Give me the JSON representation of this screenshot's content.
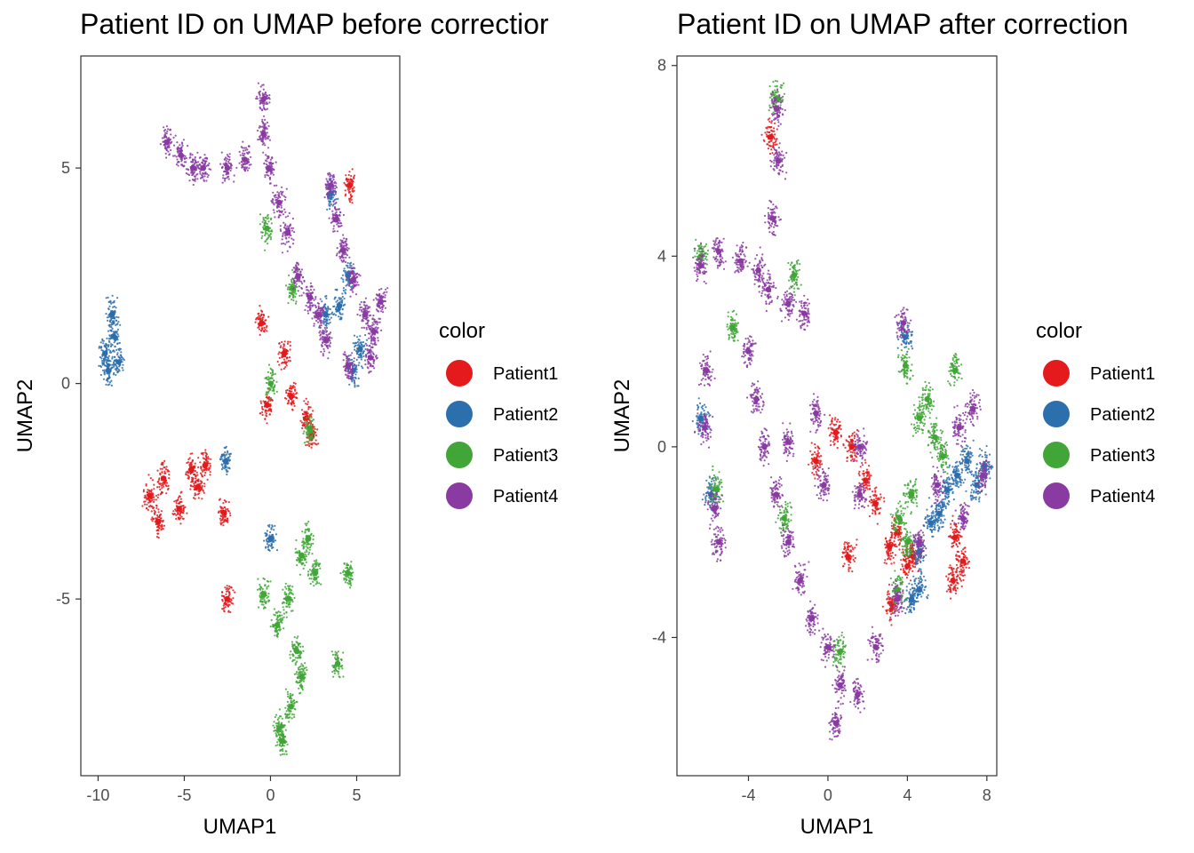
{
  "chart_data": [
    {
      "type": "scatter",
      "title": "Patient ID on UMAP before correctior",
      "xlabel": "UMAP1",
      "ylabel": "UMAP2",
      "xlim": [
        -11,
        7.5
      ],
      "ylim": [
        -9.1,
        7.6
      ],
      "xticks": [
        -10,
        -5,
        0,
        5
      ],
      "xtick_labels": [
        "-10",
        "-5",
        "0",
        "5"
      ],
      "yticks": [
        5,
        0,
        -5
      ],
      "ytick_labels": [
        "5",
        "0",
        "-5"
      ],
      "grid": false,
      "legend": {
        "title": "color",
        "position": "right",
        "entries": [
          "Patient1",
          "Patient2",
          "Patient3",
          "Patient4"
        ]
      },
      "series": [
        {
          "name": "Patient1",
          "color": "#e41a1c",
          "values": [
            [
              -7,
              -2.6
            ],
            [
              -6.2,
              -2.2
            ],
            [
              -5.3,
              -2.9
            ],
            [
              -6.5,
              -3.2
            ],
            [
              -4.6,
              -2.0
            ],
            [
              -4.2,
              -2.4
            ],
            [
              -3.8,
              -1.9
            ],
            [
              -2.7,
              -3.0
            ],
            [
              -2.5,
              -5.0
            ],
            [
              -0.2,
              -0.5
            ],
            [
              1.2,
              -0.3
            ],
            [
              2.1,
              -0.8
            ],
            [
              2.4,
              -1.2
            ],
            [
              0.8,
              0.7
            ],
            [
              -0.5,
              1.4
            ],
            [
              4.6,
              4.6
            ]
          ]
        },
        {
          "name": "Patient2",
          "color": "#2c6fad",
          "values": [
            [
              -9.6,
              0.7
            ],
            [
              -9.1,
              1.1
            ],
            [
              -9.2,
              1.6
            ],
            [
              -8.8,
              0.5
            ],
            [
              -9.4,
              0.3
            ],
            [
              -2.6,
              -1.8
            ],
            [
              0.0,
              -3.6
            ],
            [
              3.5,
              4.4
            ],
            [
              4.0,
              1.8
            ],
            [
              4.5,
              2.5
            ],
            [
              5.2,
              0.8
            ],
            [
              4.8,
              0.3
            ],
            [
              3.2,
              1.6
            ]
          ]
        },
        {
          "name": "Patient3",
          "color": "#41a637",
          "values": [
            [
              2.2,
              -3.6
            ],
            [
              1.8,
              -4.0
            ],
            [
              2.6,
              -4.4
            ],
            [
              1.0,
              -5.0
            ],
            [
              0.4,
              -5.6
            ],
            [
              1.5,
              -6.2
            ],
            [
              1.8,
              -6.8
            ],
            [
              1.2,
              -7.5
            ],
            [
              0.5,
              -8.0
            ],
            [
              0.7,
              -8.3
            ],
            [
              3.9,
              -6.5
            ],
            [
              4.5,
              -4.4
            ],
            [
              -0.4,
              -4.9
            ],
            [
              -0.2,
              3.6
            ],
            [
              1.3,
              2.2
            ],
            [
              0.0,
              0.0
            ],
            [
              2.3,
              -1.1
            ]
          ]
        },
        {
          "name": "Patient4",
          "color": "#8a3ba2",
          "values": [
            [
              -6.0,
              5.6
            ],
            [
              -5.2,
              5.3
            ],
            [
              -4.5,
              5.0
            ],
            [
              -3.9,
              5.0
            ],
            [
              -2.5,
              5.0
            ],
            [
              -1.5,
              5.2
            ],
            [
              -0.4,
              6.6
            ],
            [
              -0.4,
              5.8
            ],
            [
              -0.1,
              5.0
            ],
            [
              0.5,
              4.2
            ],
            [
              1.0,
              3.5
            ],
            [
              1.6,
              2.5
            ],
            [
              2.3,
              2.0
            ],
            [
              3.5,
              4.6
            ],
            [
              3.8,
              3.8
            ],
            [
              4.2,
              3.1
            ],
            [
              4.8,
              2.4
            ],
            [
              5.5,
              1.6
            ],
            [
              6.0,
              1.2
            ],
            [
              6.4,
              1.9
            ],
            [
              5.8,
              0.6
            ],
            [
              4.5,
              0.4
            ],
            [
              3.2,
              1.0
            ],
            [
              2.8,
              1.6
            ]
          ]
        }
      ]
    },
    {
      "type": "scatter",
      "title": "Patient ID on UMAP after correction",
      "xlabel": "UMAP1",
      "ylabel": "UMAP2",
      "xlim": [
        -7.6,
        8.5
      ],
      "ylim": [
        -6.9,
        8.2
      ],
      "xticks": [
        -4,
        0,
        4,
        8
      ],
      "xtick_labels": [
        "-4",
        "0",
        "4",
        "8"
      ],
      "yticks": [
        8,
        4,
        0,
        -4
      ],
      "ytick_labels": [
        "8",
        "4",
        "0",
        "-4"
      ],
      "grid": false,
      "legend": {
        "title": "color",
        "position": "right",
        "entries": [
          "Patient1",
          "Patient2",
          "Patient3",
          "Patient4"
        ]
      },
      "series": [
        {
          "name": "Patient1",
          "color": "#e41a1c",
          "values": [
            [
              0.4,
              0.3
            ],
            [
              1.2,
              0.0
            ],
            [
              1.9,
              -0.7
            ],
            [
              2.4,
              -1.2
            ],
            [
              3.1,
              -2.1
            ],
            [
              3.5,
              -1.8
            ],
            [
              4.0,
              -2.5
            ],
            [
              4.3,
              -2.3
            ],
            [
              6.4,
              -1.9
            ],
            [
              6.8,
              -2.4
            ],
            [
              6.3,
              -2.8
            ],
            [
              1.0,
              -2.3
            ],
            [
              -2.9,
              6.5
            ],
            [
              -0.6,
              -0.3
            ],
            [
              3.2,
              -3.3
            ]
          ]
        },
        {
          "name": "Patient2",
          "color": "#2c6fad",
          "values": [
            [
              4.6,
              -2.2
            ],
            [
              5.2,
              -1.6
            ],
            [
              5.6,
              -1.4
            ],
            [
              6.0,
              -0.9
            ],
            [
              6.5,
              -0.6
            ],
            [
              7.0,
              -0.3
            ],
            [
              7.5,
              -0.8
            ],
            [
              7.9,
              -0.4
            ],
            [
              4.6,
              -3.0
            ],
            [
              4.2,
              -3.2
            ],
            [
              -5.9,
              -1.0
            ],
            [
              -6.4,
              0.6
            ],
            [
              3.9,
              2.3
            ]
          ]
        },
        {
          "name": "Patient3",
          "color": "#41a637",
          "values": [
            [
              4.6,
              0.6
            ],
            [
              5.0,
              1.0
            ],
            [
              5.4,
              0.2
            ],
            [
              5.8,
              -0.2
            ],
            [
              6.4,
              1.6
            ],
            [
              4.2,
              -1.0
            ],
            [
              3.6,
              -1.5
            ],
            [
              4.0,
              -2.0
            ],
            [
              3.5,
              -3.0
            ],
            [
              3.9,
              1.7
            ],
            [
              -2.6,
              7.3
            ],
            [
              -1.7,
              3.6
            ],
            [
              -5.6,
              -0.9
            ],
            [
              -6.4,
              4.0
            ],
            [
              0.6,
              -4.3
            ],
            [
              -4.8,
              2.5
            ],
            [
              -2.2,
              -1.5
            ]
          ]
        },
        {
          "name": "Patient4",
          "color": "#8a3ba2",
          "values": [
            [
              -6.4,
              3.8
            ],
            [
              -5.5,
              4.1
            ],
            [
              -4.4,
              3.9
            ],
            [
              -3.5,
              3.7
            ],
            [
              -3.0,
              3.3
            ],
            [
              -2.0,
              3.0
            ],
            [
              -1.2,
              2.8
            ],
            [
              -2.8,
              4.8
            ],
            [
              -2.5,
              6.0
            ],
            [
              -2.6,
              7.1
            ],
            [
              -4.0,
              2.0
            ],
            [
              -3.6,
              1.0
            ],
            [
              -3.2,
              0.0
            ],
            [
              -2.6,
              -1.0
            ],
            [
              -2.0,
              -2.0
            ],
            [
              -1.4,
              -2.8
            ],
            [
              -0.8,
              -3.6
            ],
            [
              0.0,
              -4.2
            ],
            [
              0.6,
              -5.0
            ],
            [
              0.4,
              -5.8
            ],
            [
              1.5,
              -5.2
            ],
            [
              2.4,
              -4.2
            ],
            [
              3.5,
              -3.2
            ],
            [
              4.6,
              -2.0
            ],
            [
              5.5,
              -0.8
            ],
            [
              6.6,
              0.4
            ],
            [
              7.3,
              0.8
            ],
            [
              7.8,
              -0.6
            ],
            [
              6.8,
              -1.5
            ],
            [
              -6.2,
              0.4
            ],
            [
              -5.7,
              -1.3
            ],
            [
              -5.5,
              -2.0
            ],
            [
              -2.0,
              0.1
            ],
            [
              -0.2,
              -0.8
            ],
            [
              1.6,
              -1.0
            ],
            [
              1.6,
              0.0
            ],
            [
              -0.6,
              0.7
            ],
            [
              3.8,
              2.6
            ],
            [
              -6.1,
              1.6
            ]
          ]
        }
      ]
    }
  ]
}
